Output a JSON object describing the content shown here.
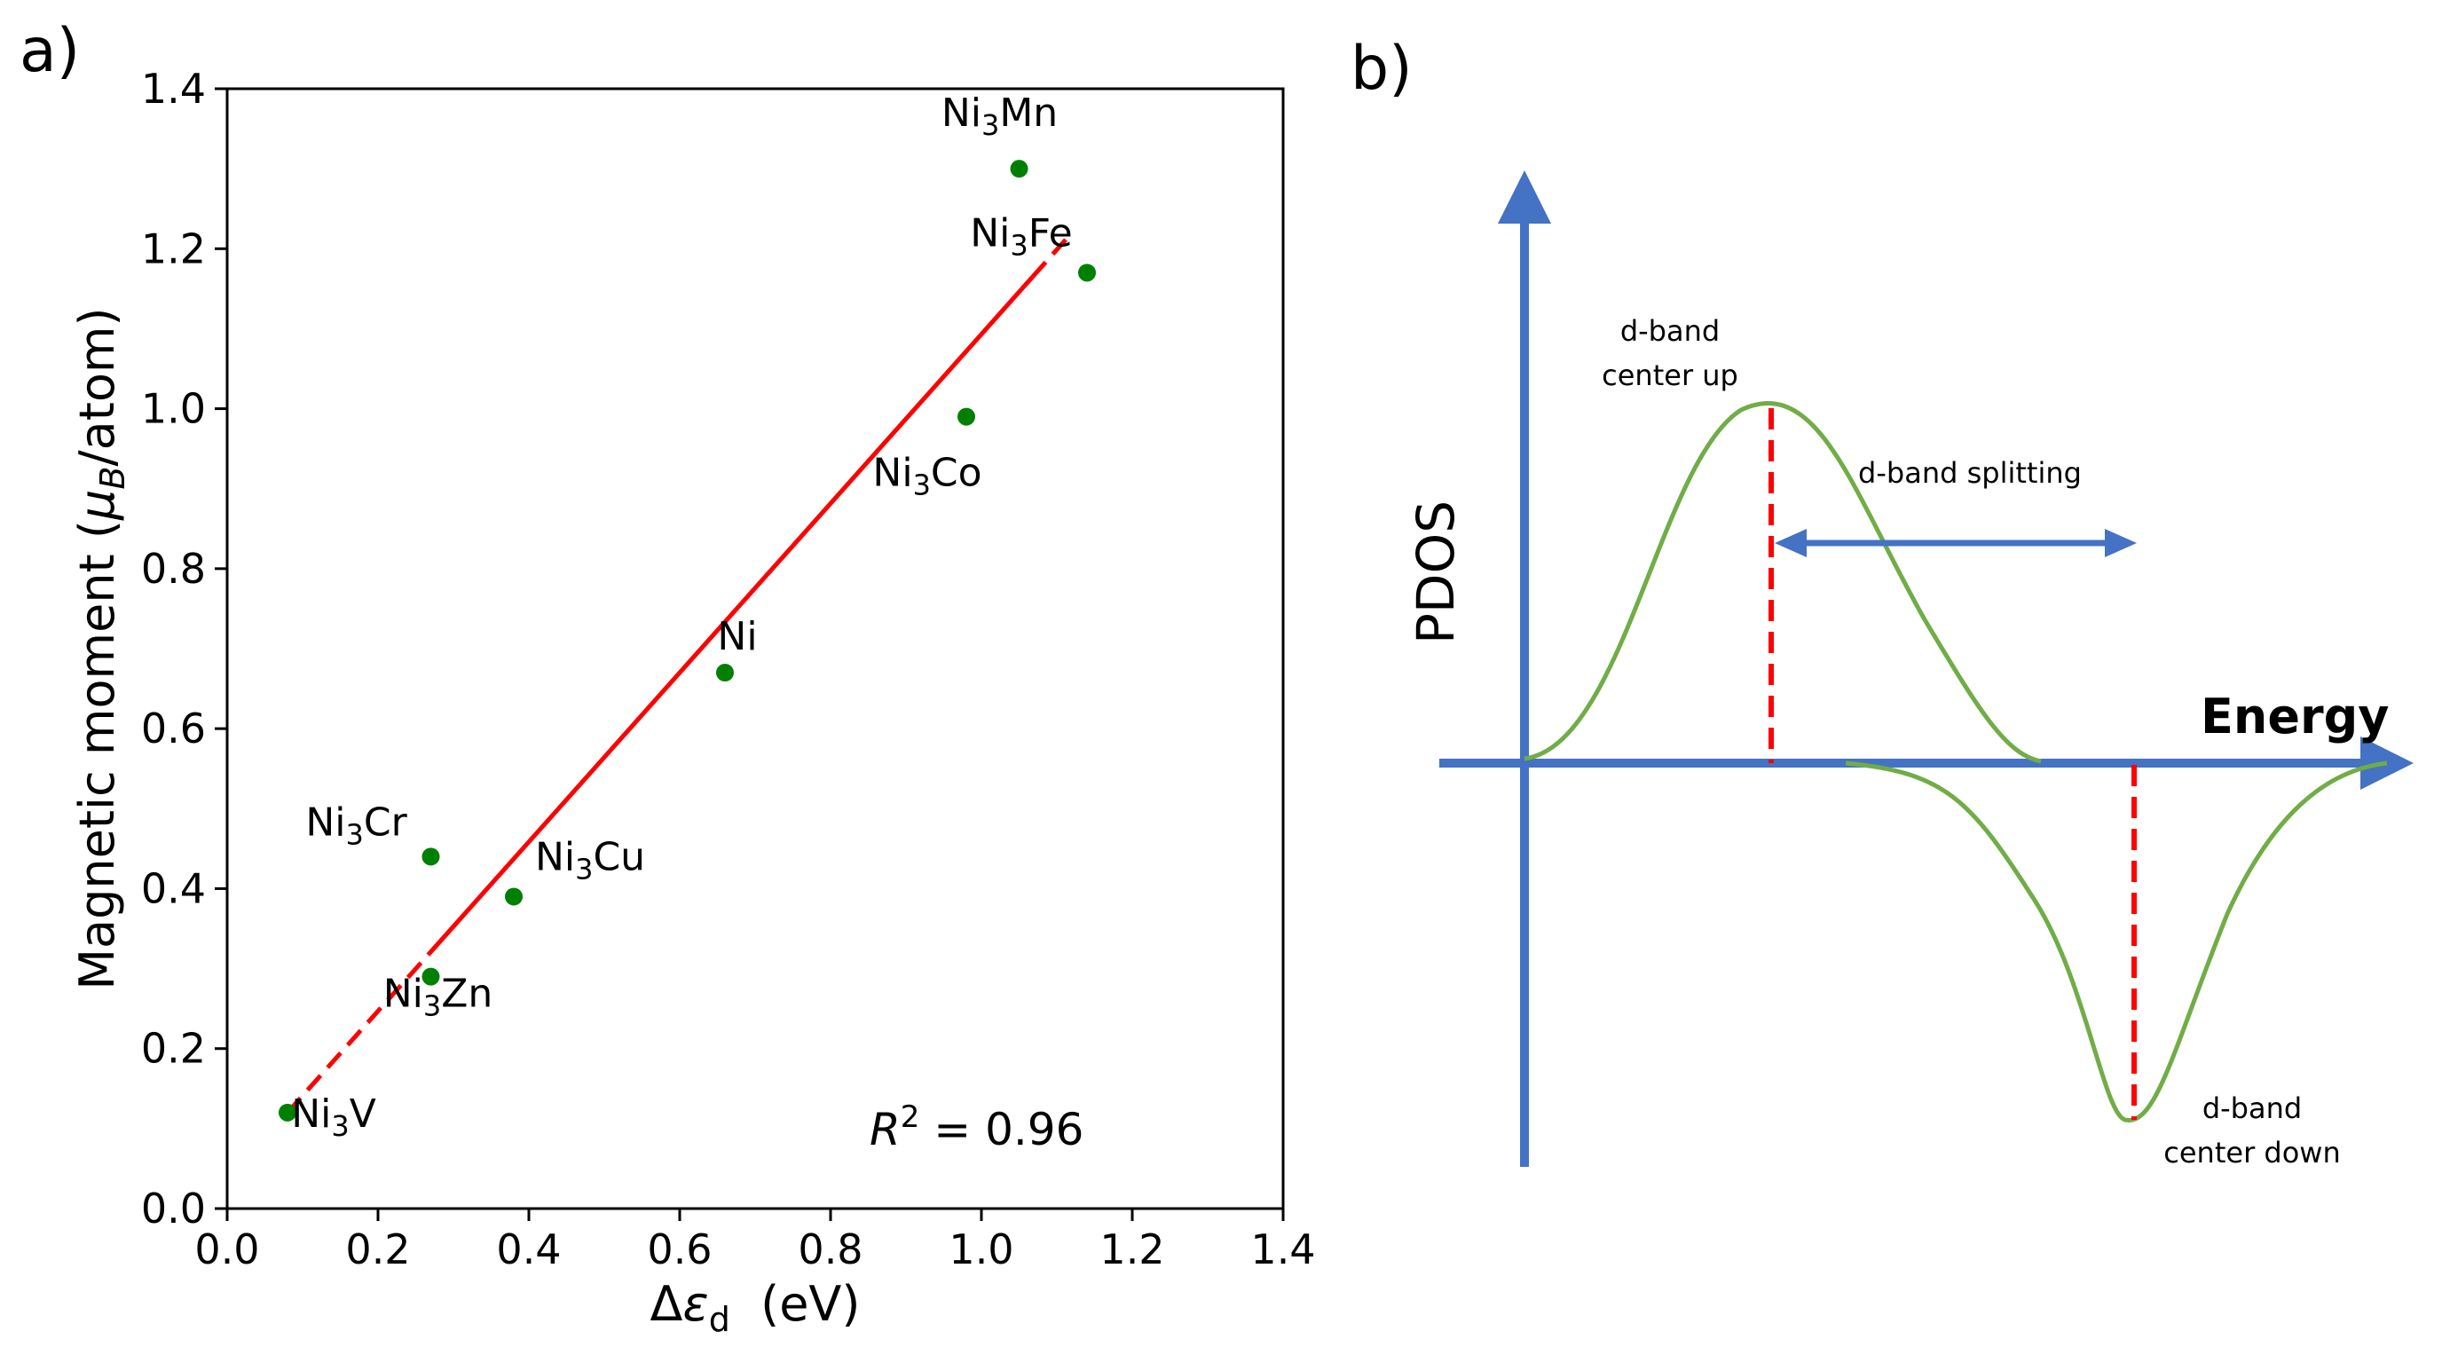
{
  "panel_a": {
    "label": "a)"
  },
  "panel_b": {
    "label": "b)",
    "ylabel": "PDOS",
    "xlabel": "Energy",
    "annotations": {
      "center_up_line1": "d-band",
      "center_up_line2": "center up",
      "splitting": "d-band splitting",
      "center_down_line1": "d-band",
      "center_down_line2": "center down"
    },
    "colors": {
      "axis": "#4472C4",
      "curve": "#70AD47",
      "marker": "#FF0000"
    }
  },
  "chart_data": [
    {
      "type": "scatter",
      "title": "",
      "xlabel": "Δε_d  (eV)",
      "ylabel": "Magnetic moment (μ_B/atom)",
      "xlim": [
        0.0,
        1.4
      ],
      "ylim": [
        0.0,
        1.4
      ],
      "xticks": [
        "0.0",
        "0.2",
        "0.4",
        "0.6",
        "0.8",
        "1.0",
        "1.2",
        "1.4"
      ],
      "yticks": [
        "0.0",
        "0.2",
        "0.4",
        "0.6",
        "0.8",
        "1.0",
        "1.2",
        "1.4"
      ],
      "points": [
        {
          "label": "Ni3Mn",
          "x": 1.05,
          "y": 1.3
        },
        {
          "label": "Ni3Fe",
          "x": 1.14,
          "y": 1.17
        },
        {
          "label": "Ni3Co",
          "x": 0.98,
          "y": 0.99
        },
        {
          "label": "Ni",
          "x": 0.66,
          "y": 0.67
        },
        {
          "label": "Ni3Cr",
          "x": 0.27,
          "y": 0.44
        },
        {
          "label": "Ni3Cu",
          "x": 0.38,
          "y": 0.39
        },
        {
          "label": "Ni3Zn",
          "x": 0.27,
          "y": 0.29
        },
        {
          "label": "Ni3V",
          "x": 0.08,
          "y": 0.12
        }
      ],
      "fit": {
        "x": [
          0.08,
          1.12
        ],
        "y": [
          0.12,
          1.22
        ],
        "color": "#FF0000",
        "r2_label": "R² = 0.96"
      },
      "marker_color": "#008000"
    }
  ]
}
